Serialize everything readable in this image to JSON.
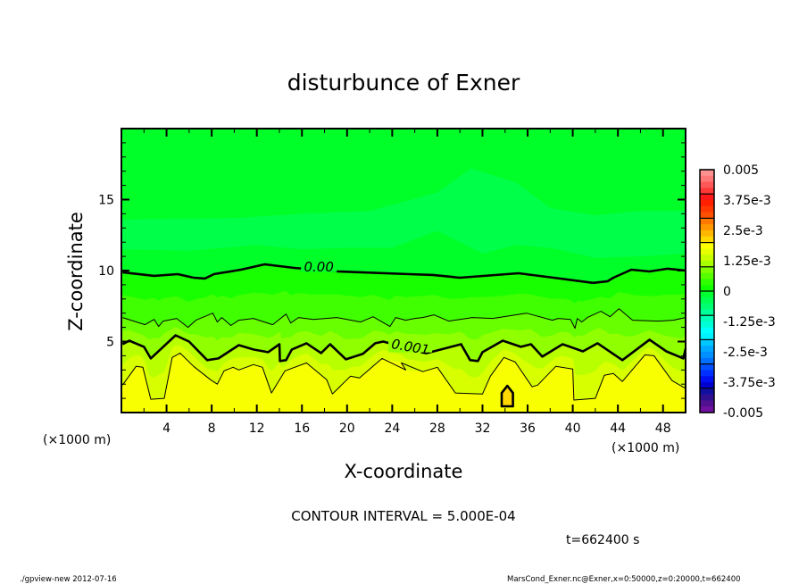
{
  "chart_data": {
    "type": "contour",
    "title": "disturbunce of Exner",
    "xlabel": "X-coordinate",
    "ylabel": "Z-coordinate",
    "x_unit_label": "(×1000 m)",
    "xlim": [
      0,
      50
    ],
    "ylim": [
      0,
      20
    ],
    "x_ticks": [
      4,
      8,
      12,
      16,
      20,
      24,
      28,
      32,
      36,
      40,
      44,
      48
    ],
    "y_ticks": [
      5,
      10,
      15
    ],
    "contour_interval_text": "CONTOUR INTERVAL = 5.000E-04",
    "time_text": "t=662400 s",
    "colorbar": {
      "labels": [
        "0.005",
        "3.75e-3",
        "2.5e-3",
        "1.25e-3",
        "0",
        "-1.25e-3",
        "-2.5e-3",
        "-3.75e-3",
        "-0.005"
      ],
      "range": [
        -0.005,
        0.005
      ],
      "colors_top_to_bottom": [
        "#ff9090",
        "#ff7878",
        "#ff5858",
        "#ff3838",
        "#ff1818",
        "#ff2000",
        "#ff3800",
        "#ff5000",
        "#ff7800",
        "#ff9800",
        "#ffb800",
        "#ffd800",
        "#ffff00",
        "#e8ff00",
        "#c8ff00",
        "#a8ff00",
        "#80ff00",
        "#58ff00",
        "#30ff00",
        "#10ff00",
        "#00ff30",
        "#00ff50",
        "#00ff70",
        "#00ff98",
        "#00ffb8",
        "#00ffd8",
        "#00ffff",
        "#00f0ff",
        "#00c8ff",
        "#00a8ff",
        "#0090ff",
        "#0070ff",
        "#0050ff",
        "#0030ff",
        "#0010f0",
        "#0000d0",
        "#1010a0",
        "#301090",
        "#501090",
        "#7010a0"
      ]
    },
    "contours": [
      {
        "level": 0.0015,
        "label": "",
        "thick": false,
        "points": [
          [
            0.1,
            1.94
          ],
          [
            1.3,
            3.25
          ],
          [
            1.9,
            3.19
          ],
          [
            2.6,
            0.94
          ],
          [
            3.8,
            1.0
          ],
          [
            4.5,
            3.88
          ],
          [
            5.2,
            4.19
          ],
          [
            6.4,
            3.25
          ],
          [
            7.9,
            2.31
          ],
          [
            8.5,
            2.0
          ],
          [
            9.1,
            2.94
          ],
          [
            9.9,
            3.19
          ],
          [
            10.4,
            3.0
          ],
          [
            11.7,
            3.38
          ],
          [
            12.5,
            3.19
          ],
          [
            13.3,
            1.38
          ],
          [
            14.5,
            2.94
          ],
          [
            16.4,
            3.5
          ],
          [
            18.2,
            2.31
          ],
          [
            18.7,
            1.31
          ],
          [
            20.3,
            2.56
          ],
          [
            21.1,
            2.44
          ],
          [
            23.1,
            3.81
          ],
          [
            25.2,
            3.0
          ],
          [
            24.8,
            3.5
          ],
          [
            26.7,
            2.88
          ],
          [
            28.0,
            3.19
          ],
          [
            29.6,
            1.38
          ],
          [
            32.0,
            1.31
          ],
          [
            32.7,
            2.56
          ],
          [
            33.9,
            3.88
          ],
          [
            34.9,
            3.56
          ],
          [
            36.4,
            1.81
          ],
          [
            36.9,
            1.94
          ],
          [
            38.5,
            3.25
          ],
          [
            40.0,
            3.06
          ],
          [
            40.1,
            0.88
          ],
          [
            42.0,
            1.0
          ],
          [
            42.8,
            2.63
          ],
          [
            43.6,
            2.75
          ],
          [
            44.4,
            2.19
          ],
          [
            46.4,
            4.06
          ],
          [
            47.2,
            4.0
          ],
          [
            48.8,
            2.25
          ],
          [
            50.0,
            1.69
          ]
        ]
      },
      {
        "level": 0.001,
        "label": "0.001",
        "label_at": [
          25.6,
          4.55
        ],
        "thick": true,
        "points": [
          [
            0.1,
            4.81
          ],
          [
            0.7,
            5.06
          ],
          [
            2.0,
            4.63
          ],
          [
            2.6,
            3.81
          ],
          [
            4.8,
            5.44
          ],
          [
            6.0,
            5.0
          ],
          [
            7.6,
            3.69
          ],
          [
            8.6,
            3.81
          ],
          [
            10.4,
            4.75
          ],
          [
            11.7,
            4.44
          ],
          [
            13.0,
            4.25
          ],
          [
            14.0,
            4.81
          ],
          [
            14.05,
            3.63
          ],
          [
            14.6,
            3.69
          ],
          [
            15.1,
            4.44
          ],
          [
            16.4,
            4.88
          ],
          [
            17.7,
            4.19
          ],
          [
            18.5,
            4.81
          ],
          [
            19.9,
            3.75
          ],
          [
            21.4,
            4.13
          ],
          [
            22.5,
            4.88
          ],
          [
            23.2,
            5.0
          ],
          [
            27.1,
            4.19
          ],
          [
            30.1,
            4.81
          ],
          [
            30.9,
            3.69
          ],
          [
            31.6,
            3.63
          ],
          [
            32.0,
            4.25
          ],
          [
            33.8,
            5.06
          ],
          [
            35.4,
            4.63
          ],
          [
            36.3,
            4.81
          ],
          [
            37.3,
            3.94
          ],
          [
            39.1,
            4.81
          ],
          [
            40.9,
            4.31
          ],
          [
            42.2,
            4.88
          ],
          [
            44.4,
            3.69
          ],
          [
            46.8,
            5.13
          ],
          [
            48.3,
            4.31
          ],
          [
            49.8,
            3.81
          ],
          [
            50.0,
            4.5
          ]
        ]
      },
      {
        "level": 0.0005,
        "label": "",
        "thick": false,
        "points": [
          [
            0.1,
            6.69
          ],
          [
            2.1,
            6.19
          ],
          [
            2.9,
            6.56
          ],
          [
            3.3,
            6.06
          ],
          [
            3.7,
            6.44
          ],
          [
            4.9,
            6.63
          ],
          [
            5.9,
            6.0
          ],
          [
            6.6,
            6.5
          ],
          [
            8.1,
            7.0
          ],
          [
            8.5,
            6.38
          ],
          [
            8.9,
            6.69
          ],
          [
            9.7,
            6.13
          ],
          [
            10.4,
            6.5
          ],
          [
            11.7,
            6.63
          ],
          [
            13.4,
            6.19
          ],
          [
            14.6,
            6.94
          ],
          [
            15.0,
            6.31
          ],
          [
            15.7,
            6.69
          ],
          [
            17.0,
            6.56
          ],
          [
            19.1,
            6.69
          ],
          [
            21.2,
            6.38
          ],
          [
            22.3,
            6.75
          ],
          [
            23.8,
            6.06
          ],
          [
            24.3,
            6.69
          ],
          [
            25.2,
            6.5
          ],
          [
            26.0,
            6.63
          ],
          [
            26.7,
            6.69
          ],
          [
            27.7,
            6.88
          ],
          [
            29.0,
            6.44
          ],
          [
            30.0,
            6.56
          ],
          [
            31.1,
            6.69
          ],
          [
            32.9,
            6.63
          ],
          [
            35.9,
            7.0
          ],
          [
            38.2,
            6.5
          ],
          [
            38.7,
            6.63
          ],
          [
            39.8,
            6.56
          ],
          [
            40.2,
            5.94
          ],
          [
            40.4,
            6.63
          ],
          [
            40.8,
            6.38
          ],
          [
            41.3,
            6.69
          ],
          [
            42.5,
            7.13
          ],
          [
            43.3,
            6.75
          ],
          [
            44.1,
            7.31
          ],
          [
            45.3,
            6.5
          ],
          [
            47.6,
            6.44
          ],
          [
            48.9,
            6.5
          ],
          [
            50.0,
            6.69
          ]
        ]
      },
      {
        "level": 0.0,
        "label": "0.00",
        "label_at": [
          17.5,
          10.2
        ],
        "thick": true,
        "points": [
          [
            0.1,
            9.88
          ],
          [
            2.9,
            9.63
          ],
          [
            5.0,
            9.75
          ],
          [
            6.4,
            9.5
          ],
          [
            7.4,
            9.44
          ],
          [
            8.2,
            9.75
          ],
          [
            10.6,
            10.06
          ],
          [
            12.7,
            10.44
          ],
          [
            15.3,
            10.19
          ],
          [
            19.2,
            9.94
          ],
          [
            25.5,
            9.75
          ],
          [
            27.6,
            9.69
          ],
          [
            30.0,
            9.5
          ],
          [
            35.2,
            9.81
          ],
          [
            38.3,
            9.5
          ],
          [
            41.8,
            9.13
          ],
          [
            43.1,
            9.25
          ],
          [
            43.6,
            9.5
          ],
          [
            45.2,
            10.06
          ],
          [
            46.8,
            9.94
          ],
          [
            48.4,
            10.13
          ],
          [
            50.0,
            10.0
          ]
        ]
      },
      {
        "level": 0.002,
        "label": "",
        "thick": true,
        "closed": true,
        "points": [
          [
            33.7,
            1.38
          ],
          [
            34.2,
            1.88
          ],
          [
            34.7,
            1.38
          ],
          [
            34.7,
            0.44
          ],
          [
            33.7,
            0.44
          ]
        ]
      }
    ],
    "negative_region": {
      "level": -0.00025,
      "top": [
        [
          0,
          13.6
        ],
        [
          10,
          13.7
        ],
        [
          16,
          14.0
        ],
        [
          22,
          14.2
        ],
        [
          28,
          15.5
        ],
        [
          31,
          17.2
        ],
        [
          35,
          16.2
        ],
        [
          38,
          14.4
        ],
        [
          42,
          13.9
        ],
        [
          46,
          14.2
        ],
        [
          50,
          14.2
        ]
      ],
      "bottom": [
        [
          50,
          11.2
        ],
        [
          46,
          11.0
        ],
        [
          42,
          10.9
        ],
        [
          38,
          11.6
        ],
        [
          35,
          11.8
        ],
        [
          32,
          11.2
        ],
        [
          28,
          12.8
        ],
        [
          26,
          12.2
        ],
        [
          24,
          11.6
        ],
        [
          20,
          11.6
        ],
        [
          16,
          11.5
        ],
        [
          12,
          11.8
        ],
        [
          6,
          11.4
        ],
        [
          0,
          11.5
        ]
      ]
    },
    "band_colors": {
      "base": "#f8ff00",
      "above_0.0015": "#d8ff00",
      "above_0.00125": "#b8ff00",
      "above_0.001": "#90ff00",
      "above_0.00075": "#68ff00",
      "above_0.0005": "#40ff00",
      "above_0.00025": "#18ff00",
      "above_0": "#00ff28",
      "negative": "#00ff48",
      "closed_0.002": "#ffd800"
    }
  },
  "footer": {
    "left": "./gpview-new   2012-07-16",
    "right": "MarsCond_Exner.nc@Exner,x=0:50000,z=0:20000,t=662400"
  }
}
